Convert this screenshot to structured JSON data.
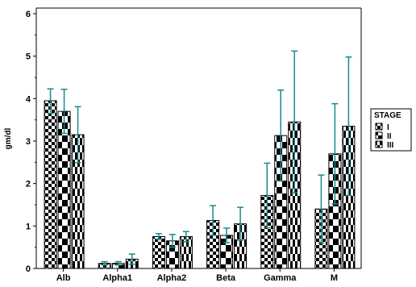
{
  "chart_data": {
    "type": "bar",
    "title": "",
    "xlabel": "",
    "ylabel": "gm/dl",
    "ylim": [
      0,
      6
    ],
    "yticks": [
      0,
      1,
      2,
      3,
      4,
      5,
      6
    ],
    "grid": false,
    "legend_position": "right",
    "legend_title": "STAGE",
    "categories": [
      "Alb",
      "Alpha1",
      "Alpha2",
      "Beta",
      "Gamma",
      "M"
    ],
    "series": [
      {
        "name": "I",
        "values": [
          3.95,
          0.12,
          0.75,
          1.13,
          1.72,
          1.4
        ],
        "error_upper": [
          4.23,
          0.16,
          0.82,
          1.48,
          2.48,
          2.2
        ],
        "error_lower": [
          3.65,
          0.08,
          0.68,
          0.78,
          0.96,
          0.6
        ]
      },
      {
        "name": "II",
        "values": [
          3.7,
          0.12,
          0.65,
          0.78,
          3.13,
          2.7
        ],
        "error_upper": [
          4.22,
          0.16,
          0.8,
          0.95,
          4.2,
          3.88
        ],
        "error_lower": [
          3.18,
          0.08,
          0.5,
          0.61,
          2.06,
          1.52
        ]
      },
      {
        "name": "III",
        "values": [
          3.15,
          0.22,
          0.75,
          1.05,
          3.45,
          3.35
        ],
        "error_upper": [
          3.81,
          0.34,
          0.87,
          1.44,
          5.12,
          4.98
        ],
        "error_lower": [
          2.49,
          0.1,
          0.63,
          0.66,
          1.78,
          1.72
        ]
      }
    ],
    "error_bar_color": "#1a8a8a"
  }
}
